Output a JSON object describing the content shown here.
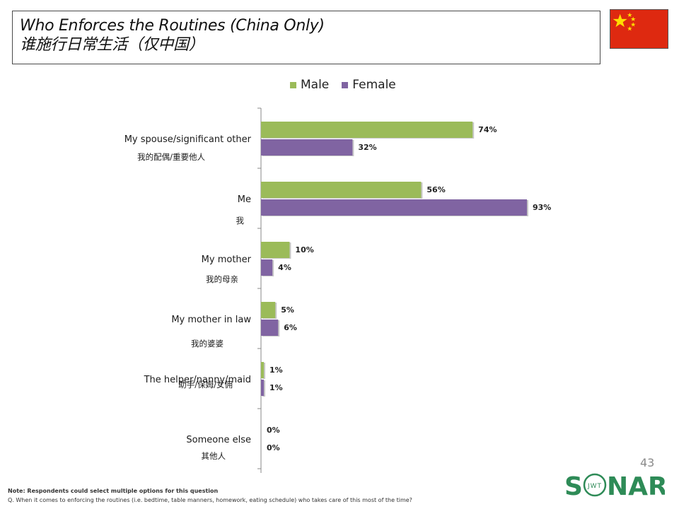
{
  "header": {
    "title_en": "Who Enforces the Routines (China Only)",
    "title_cn": "谁施行日常生活（仅中国）"
  },
  "flag_icon": "china-flag-icon",
  "colors": {
    "male": "#9bbb59",
    "female": "#8064a2",
    "axis": "#888888"
  },
  "chart_data": {
    "type": "bar",
    "orientation": "horizontal",
    "categories": [
      "My spouse/significant other",
      "Me",
      "My mother",
      "My mother in law",
      "The helper/nanny/maid",
      "Someone else"
    ],
    "categories_cn": [
      "我的配偶/重要他人",
      "我",
      "我的母亲",
      "我的婆婆",
      "助手/保姆/女佣",
      "其他人"
    ],
    "series": [
      {
        "name": "Male",
        "values": [
          74,
          56,
          10,
          5,
          1,
          0
        ],
        "labels": [
          "74%",
          "56%",
          "10%",
          "5%",
          "1%",
          "0%"
        ]
      },
      {
        "name": "Female",
        "values": [
          32,
          93,
          4,
          6,
          1,
          0
        ],
        "labels": [
          "32%",
          "93%",
          "4%",
          "6%",
          "1%",
          "0%"
        ]
      }
    ],
    "xlim": [
      0,
      100
    ],
    "legend": "top",
    "grid": false
  },
  "footer": {
    "page_number": "43",
    "logo_text_left": "S",
    "logo_text_right": "NAR",
    "logo_inner": "JWT",
    "note": "Note: Respondents could select multiple options for this question",
    "question": "Q. When it comes to enforcing the routines (i.e. bedtime, table manners, homework, eating schedule) who takes care of this most of the time?"
  }
}
